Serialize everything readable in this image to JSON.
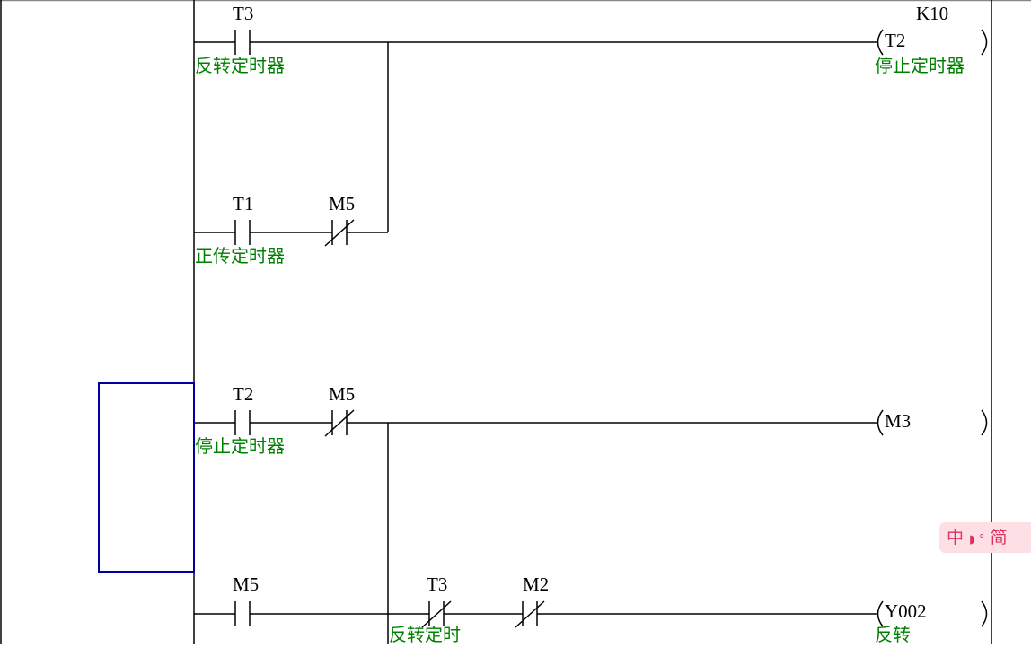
{
  "rungs": [
    {
      "contacts": [
        {
          "device": "T3",
          "type": "NO",
          "comment": "反转定时器"
        },
        {
          "device": "T1",
          "type": "NO",
          "comment": "正传定时器"
        },
        {
          "device": "M5",
          "type": "NC",
          "comment": ""
        }
      ],
      "coil": {
        "device": "T2",
        "setting": "K10",
        "comment": "停止定时器"
      }
    },
    {
      "contacts": [
        {
          "device": "T2",
          "type": "NO",
          "comment": "停止定时器"
        },
        {
          "device": "M5",
          "type": "NC",
          "comment": ""
        }
      ],
      "coil": {
        "device": "M3",
        "comment": ""
      }
    },
    {
      "contacts": [
        {
          "device": "M5",
          "type": "NO",
          "comment": ""
        },
        {
          "device": "T3",
          "type": "NC",
          "comment": "反转定时"
        },
        {
          "device": "M2",
          "type": "NC",
          "comment": ""
        }
      ],
      "coil": {
        "device": "Y002",
        "comment": "反转"
      }
    }
  ],
  "ime": {
    "mode": "中",
    "punct": "◗ °",
    "script": "简"
  },
  "colors": {
    "comment": "#008000",
    "cursor": "#0000a0",
    "line": "#000000"
  }
}
